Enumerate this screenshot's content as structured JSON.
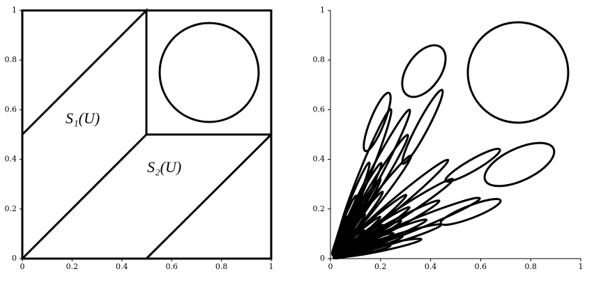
{
  "chart_data": [
    {
      "type": "plot",
      "xlim": [
        0,
        1
      ],
      "ylim": [
        0,
        1
      ],
      "xticks": [
        0,
        0.2,
        0.4,
        0.6,
        0.8,
        1
      ],
      "yticks": [
        0,
        0.2,
        0.4,
        0.6,
        0.8,
        1
      ],
      "annotations": [
        "S₁(U)",
        "S₂(U)"
      ]
    },
    {
      "type": "plot",
      "xlim": [
        0,
        1
      ],
      "ylim": [
        0,
        1
      ],
      "xticks": [
        0,
        0.2,
        0.4,
        0.6,
        0.8,
        1
      ],
      "yticks": [
        0,
        0.2,
        0.4,
        0.6,
        0.8,
        1
      ]
    }
  ]
}
